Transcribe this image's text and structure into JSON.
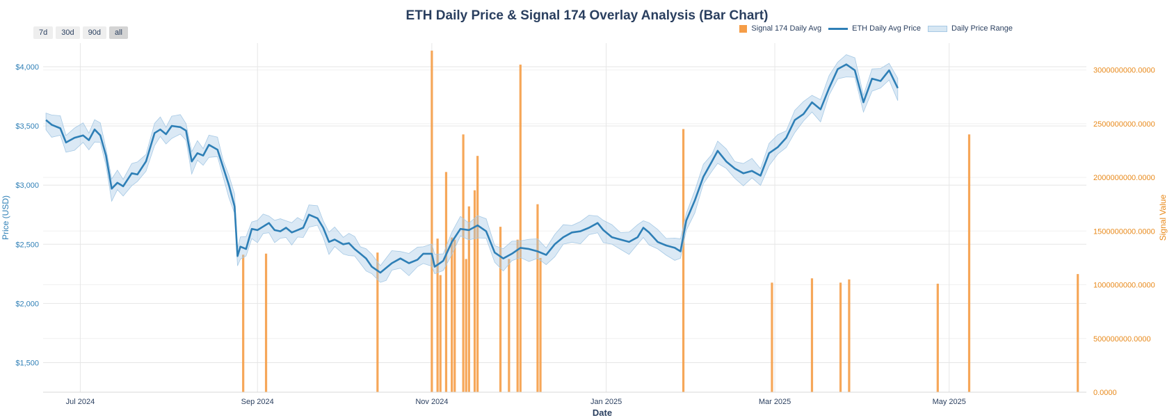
{
  "chart_data": {
    "type": "bar",
    "title": "ETH Daily Price & Signal 174 Overlay Analysis (Bar Chart)",
    "xlabel": "Date",
    "ylabel": "Price (USD)",
    "y2label": "Signal Value",
    "range_buttons": [
      "7d",
      "30d",
      "90d",
      "all"
    ],
    "active_range": "all",
    "legend": [
      "Signal 174 Daily Avg",
      "ETH Daily Avg Price",
      "Daily Price Range"
    ],
    "legend_position": "top-right",
    "grid": true,
    "colors": {
      "price": "#2e7fb6",
      "band": "#a6c9e5",
      "signal": "#f59d47",
      "axis_left": "#2e7fb6",
      "axis_right": "#e8891a",
      "title": "#2a3f5f"
    },
    "x_range": [
      "2024-06-18",
      "2025-06-18"
    ],
    "ylim": [
      1250,
      4200
    ],
    "y2lim": [
      0,
      3250000000
    ],
    "x_ticks": [
      {
        "date": "2024-07-01",
        "label": "Jul 2024"
      },
      {
        "date": "2024-09-01",
        "label": "Sep 2024"
      },
      {
        "date": "2024-11-01",
        "label": "Nov 2024"
      },
      {
        "date": "2025-01-01",
        "label": "Jan 2025"
      },
      {
        "date": "2025-03-01",
        "label": "Mar 2025"
      },
      {
        "date": "2025-05-01",
        "label": "May 2025"
      }
    ],
    "y_ticks": [
      {
        "value": 1500,
        "label": "$1,500"
      },
      {
        "value": 2000,
        "label": "$2,000"
      },
      {
        "value": 2500,
        "label": "$2,500"
      },
      {
        "value": 3000,
        "label": "$3,000"
      },
      {
        "value": 3500,
        "label": "$3,500"
      },
      {
        "value": 4000,
        "label": "$4,000"
      }
    ],
    "y2_ticks": [
      {
        "value": 0,
        "label": "0.0000"
      },
      {
        "value": 500000000,
        "label": "500000000.0000"
      },
      {
        "value": 1000000000,
        "label": "1000000000.0000"
      },
      {
        "value": 1500000000,
        "label": "1500000000.0000"
      },
      {
        "value": 2000000000,
        "label": "2000000000.0000"
      },
      {
        "value": 2500000000,
        "label": "2500000000.0000"
      },
      {
        "value": 3000000000,
        "label": "3000000000.0000"
      }
    ],
    "series": [
      {
        "name": "ETH Daily Avg Price",
        "type": "line",
        "points": [
          [
            "2024-06-19",
            3550
          ],
          [
            "2024-06-21",
            3510
          ],
          [
            "2024-06-24",
            3480
          ],
          [
            "2024-06-26",
            3360
          ],
          [
            "2024-06-29",
            3400
          ],
          [
            "2024-07-02",
            3420
          ],
          [
            "2024-07-04",
            3380
          ],
          [
            "2024-07-06",
            3470
          ],
          [
            "2024-07-08",
            3420
          ],
          [
            "2024-07-10",
            3250
          ],
          [
            "2024-07-12",
            2970
          ],
          [
            "2024-07-14",
            3020
          ],
          [
            "2024-07-16",
            2990
          ],
          [
            "2024-07-19",
            3100
          ],
          [
            "2024-07-21",
            3090
          ],
          [
            "2024-07-24",
            3200
          ],
          [
            "2024-07-27",
            3440
          ],
          [
            "2024-07-29",
            3470
          ],
          [
            "2024-07-31",
            3430
          ],
          [
            "2024-08-02",
            3500
          ],
          [
            "2024-08-05",
            3490
          ],
          [
            "2024-08-07",
            3460
          ],
          [
            "2024-08-09",
            3200
          ],
          [
            "2024-08-11",
            3270
          ],
          [
            "2024-08-13",
            3250
          ],
          [
            "2024-08-15",
            3340
          ],
          [
            "2024-08-18",
            3300
          ],
          [
            "2024-08-20",
            3150
          ],
          [
            "2024-08-22",
            3000
          ],
          [
            "2024-08-24",
            2820
          ],
          [
            "2024-08-25",
            2400
          ],
          [
            "2024-08-26",
            2480
          ],
          [
            "2024-08-28",
            2460
          ],
          [
            "2024-08-30",
            2630
          ],
          [
            "2024-09-01",
            2620
          ],
          [
            "2024-09-03",
            2650
          ],
          [
            "2024-09-05",
            2680
          ],
          [
            "2024-09-07",
            2620
          ],
          [
            "2024-09-09",
            2610
          ],
          [
            "2024-09-11",
            2640
          ],
          [
            "2024-09-13",
            2600
          ],
          [
            "2024-09-15",
            2620
          ],
          [
            "2024-09-17",
            2640
          ],
          [
            "2024-09-19",
            2750
          ],
          [
            "2024-09-22",
            2720
          ],
          [
            "2024-09-24",
            2640
          ],
          [
            "2024-09-26",
            2520
          ],
          [
            "2024-09-28",
            2540
          ],
          [
            "2024-10-01",
            2500
          ],
          [
            "2024-10-03",
            2510
          ],
          [
            "2024-10-05",
            2460
          ],
          [
            "2024-10-07",
            2420
          ],
          [
            "2024-10-09",
            2380
          ],
          [
            "2024-10-11",
            2310
          ],
          [
            "2024-10-14",
            2260
          ],
          [
            "2024-10-16",
            2300
          ],
          [
            "2024-10-18",
            2340
          ],
          [
            "2024-10-21",
            2380
          ],
          [
            "2024-10-24",
            2340
          ],
          [
            "2024-10-27",
            2370
          ],
          [
            "2024-10-29",
            2420
          ],
          [
            "2024-11-01",
            2420
          ],
          [
            "2024-11-02",
            2310
          ],
          [
            "2024-11-05",
            2360
          ],
          [
            "2024-11-08",
            2520
          ],
          [
            "2024-11-11",
            2630
          ],
          [
            "2024-11-14",
            2620
          ],
          [
            "2024-11-17",
            2660
          ],
          [
            "2024-11-20",
            2610
          ],
          [
            "2024-11-23",
            2430
          ],
          [
            "2024-11-26",
            2380
          ],
          [
            "2024-11-29",
            2420
          ],
          [
            "2024-12-02",
            2470
          ],
          [
            "2024-12-05",
            2460
          ],
          [
            "2024-12-08",
            2440
          ],
          [
            "2024-12-11",
            2410
          ],
          [
            "2024-12-14",
            2500
          ],
          [
            "2024-12-17",
            2560
          ],
          [
            "2024-12-20",
            2600
          ],
          [
            "2024-12-23",
            2610
          ],
          [
            "2024-12-26",
            2640
          ],
          [
            "2024-12-29",
            2680
          ],
          [
            "2024-12-31",
            2620
          ],
          [
            "2025-01-03",
            2560
          ],
          [
            "2025-01-06",
            2540
          ],
          [
            "2025-01-09",
            2520
          ],
          [
            "2025-01-12",
            2560
          ],
          [
            "2025-01-14",
            2640
          ],
          [
            "2025-01-16",
            2600
          ],
          [
            "2025-01-19",
            2520
          ],
          [
            "2025-01-22",
            2490
          ],
          [
            "2025-01-25",
            2470
          ],
          [
            "2025-01-27",
            2440
          ],
          [
            "2025-01-29",
            2700
          ],
          [
            "2025-02-01",
            2870
          ],
          [
            "2025-02-04",
            3070
          ],
          [
            "2025-02-07",
            3200
          ],
          [
            "2025-02-09",
            3290
          ],
          [
            "2025-02-12",
            3200
          ],
          [
            "2025-02-15",
            3140
          ],
          [
            "2025-02-18",
            3100
          ],
          [
            "2025-02-21",
            3120
          ],
          [
            "2025-02-24",
            3080
          ],
          [
            "2025-02-27",
            3270
          ],
          [
            "2025-03-02",
            3320
          ],
          [
            "2025-03-05",
            3400
          ],
          [
            "2025-03-08",
            3550
          ],
          [
            "2025-03-11",
            3600
          ],
          [
            "2025-03-14",
            3700
          ],
          [
            "2025-03-17",
            3640
          ],
          [
            "2025-03-20",
            3820
          ],
          [
            "2025-03-23",
            3980
          ],
          [
            "2025-03-26",
            4020
          ],
          [
            "2025-03-29",
            3970
          ],
          [
            "2025-04-01",
            3700
          ],
          [
            "2025-04-04",
            3900
          ],
          [
            "2025-04-07",
            3880
          ],
          [
            "2025-04-10",
            3970
          ],
          [
            "2025-04-13",
            3820
          ]
        ]
      },
      {
        "name": "Signal 174 Daily Avg",
        "type": "bar",
        "points": [
          [
            "2024-08-27",
            1280000000
          ],
          [
            "2024-09-04",
            1290000000
          ],
          [
            "2024-10-13",
            1300000000
          ],
          [
            "2024-11-01",
            3180000000
          ],
          [
            "2024-11-03",
            1430000000
          ],
          [
            "2024-11-04",
            1090000000
          ],
          [
            "2024-11-06",
            2050000000
          ],
          [
            "2024-11-08",
            1440000000
          ],
          [
            "2024-11-09",
            1420000000
          ],
          [
            "2024-11-12",
            2400000000
          ],
          [
            "2024-11-13",
            1240000000
          ],
          [
            "2024-11-14",
            1730000000
          ],
          [
            "2024-11-16",
            1880000000
          ],
          [
            "2024-11-17",
            2200000000
          ],
          [
            "2024-11-25",
            1540000000
          ],
          [
            "2024-11-28",
            1240000000
          ],
          [
            "2024-12-01",
            1420000000
          ],
          [
            "2024-12-02",
            3050000000
          ],
          [
            "2024-12-08",
            1750000000
          ],
          [
            "2024-12-09",
            1250000000
          ],
          [
            "2025-01-28",
            2450000000
          ],
          [
            "2025-02-28",
            1020000000
          ],
          [
            "2025-03-14",
            1060000000
          ],
          [
            "2025-03-24",
            1020000000
          ],
          [
            "2025-03-27",
            1050000000
          ],
          [
            "2025-04-27",
            1010000000
          ],
          [
            "2025-05-08",
            2400000000
          ],
          [
            "2025-06-15",
            1100000000
          ]
        ]
      }
    ]
  }
}
